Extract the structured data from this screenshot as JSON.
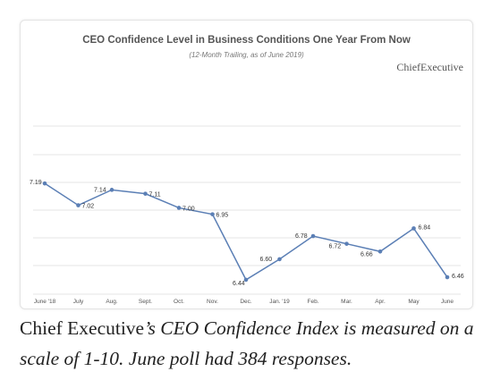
{
  "chart_data": {
    "type": "line",
    "title": "CEO Confidence Level in Business Conditions One Year From Now",
    "subtitle": "(12-Month Trailing, as of June 2019)",
    "brand": "ChiefExecutive",
    "categories": [
      "June '18",
      "July",
      "Aug.",
      "Sept.",
      "Oct.",
      "Nov.",
      "Dec.",
      "Jan. '19",
      "Feb.",
      "Mar.",
      "Apr.",
      "May",
      "June"
    ],
    "values": [
      7.19,
      7.02,
      7.14,
      7.11,
      7.0,
      6.95,
      6.44,
      6.6,
      6.78,
      6.72,
      6.66,
      6.84,
      6.46
    ],
    "data_labels": [
      "7.19",
      "7.02",
      "7.14",
      "7.11",
      "7.00",
      "6.95",
      "6.44",
      "6.60",
      "6.78",
      "6.72",
      "6.66",
      "6.84",
      "6.46"
    ],
    "ylim": [
      6.3,
      7.4
    ],
    "grid": true,
    "line_color": "#5b7fb5",
    "grid_color": "#e6e6e6"
  },
  "caption": {
    "part1": "Chief Executive",
    "part2": "’s CEO Confidence Index is measured on a scale of 1-10. June poll had 384 responses."
  }
}
